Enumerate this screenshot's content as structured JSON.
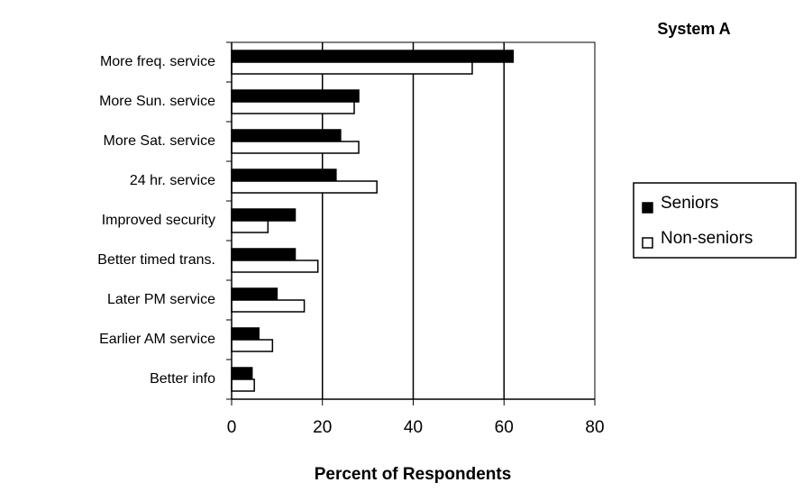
{
  "chart_data": {
    "type": "bar",
    "orientation": "horizontal",
    "title": "System A",
    "xlabel": "Percent of Respondents",
    "ylabel": "",
    "xlim": [
      0,
      80
    ],
    "x_ticks": [
      "0",
      "20",
      "40",
      "60",
      "80"
    ],
    "grid": "vertical gridlines at 20, 40, 60",
    "legend_position": "right",
    "categories": [
      "More freq. service",
      "More Sun. service",
      "More Sat. service",
      "24 hr. service",
      "Improved security",
      "Better timed trans.",
      "Later PM service",
      "Earlier AM service",
      "Better info"
    ],
    "series": [
      {
        "name": "Seniors",
        "color": "#000000",
        "values": [
          62,
          28,
          24,
          23,
          14,
          14,
          10,
          6,
          4.5
        ]
      },
      {
        "name": "Non-seniors",
        "color": "#ffffff",
        "values": [
          53,
          27,
          28,
          32,
          8,
          19,
          16,
          9,
          5
        ]
      }
    ]
  }
}
